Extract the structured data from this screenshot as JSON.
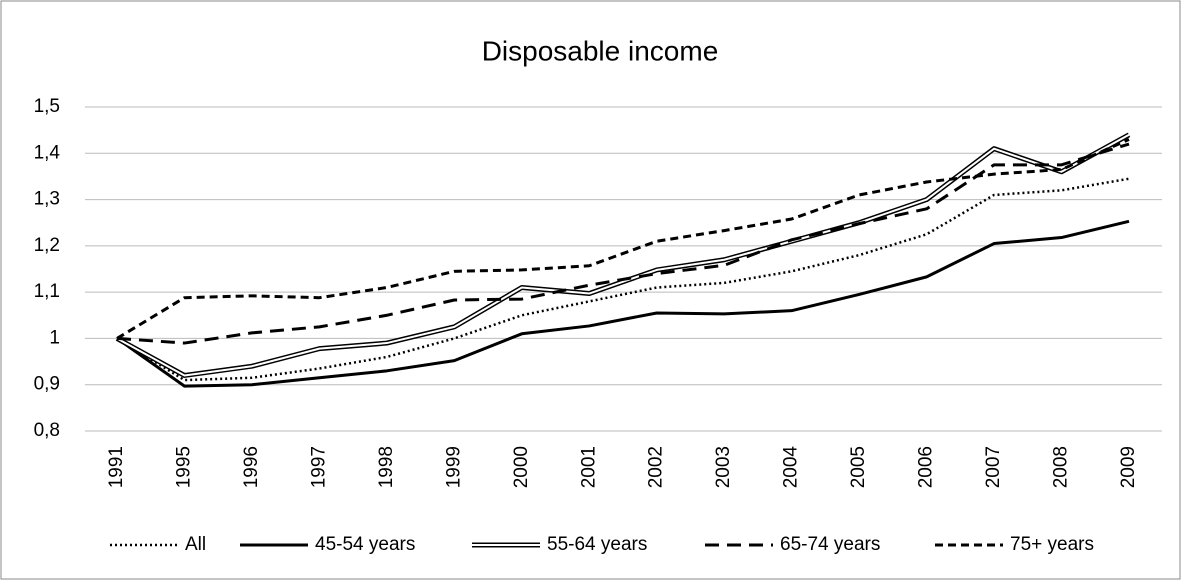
{
  "chart_data": {
    "type": "line",
    "title": "Disposable income",
    "categories": [
      "1991",
      "1995",
      "1996",
      "1997",
      "1998",
      "1999",
      "2000",
      "2001",
      "2002",
      "2003",
      "2004",
      "2005",
      "2006",
      "2007",
      "2008",
      "2009"
    ],
    "ylim": [
      0.8,
      1.5
    ],
    "yticks": [
      {
        "value": 0.8,
        "label": "0,8"
      },
      {
        "value": 0.9,
        "label": "0,9"
      },
      1,
      {
        "value": 1.1,
        "label": "1,1"
      },
      {
        "value": 1.2,
        "label": "1,2"
      },
      {
        "value": 1.3,
        "label": "1,3"
      },
      {
        "value": 1.4,
        "label": "1,4"
      },
      {
        "value": 1.5,
        "label": "1,5"
      }
    ],
    "grid": true,
    "series": [
      {
        "name": "All",
        "color": "#000000",
        "style": "dotted",
        "values": [
          1.0,
          0.91,
          0.915,
          0.935,
          0.96,
          1.0,
          1.05,
          1.08,
          1.11,
          1.12,
          1.145,
          1.18,
          1.225,
          1.31,
          1.32,
          1.345
        ]
      },
      {
        "name": "45-54 years",
        "color": "#000000",
        "style": "solid",
        "values": [
          1.0,
          0.897,
          0.9,
          0.915,
          0.93,
          0.952,
          1.01,
          1.027,
          1.055,
          1.053,
          1.06,
          1.095,
          1.133,
          1.205,
          1.218,
          1.253
        ]
      },
      {
        "name": "55-64 years",
        "color": "#000000",
        "style": "double",
        "values": [
          1.0,
          0.92,
          0.94,
          0.978,
          0.99,
          1.025,
          1.11,
          1.097,
          1.148,
          1.17,
          1.21,
          1.25,
          1.3,
          1.41,
          1.36,
          1.44
        ]
      },
      {
        "name": "65-74 years",
        "color": "#000000",
        "style": "dashed",
        "values": [
          1.0,
          0.99,
          1.012,
          1.025,
          1.05,
          1.083,
          1.085,
          1.115,
          1.14,
          1.158,
          1.213,
          1.248,
          1.28,
          1.375,
          1.375,
          1.42
        ]
      },
      {
        "name": "75+ years",
        "color": "#000000",
        "style": "short-dash",
        "values": [
          1.0,
          1.088,
          1.092,
          1.088,
          1.11,
          1.145,
          1.148,
          1.157,
          1.21,
          1.233,
          1.258,
          1.31,
          1.338,
          1.355,
          1.365,
          1.43
        ]
      }
    ]
  }
}
